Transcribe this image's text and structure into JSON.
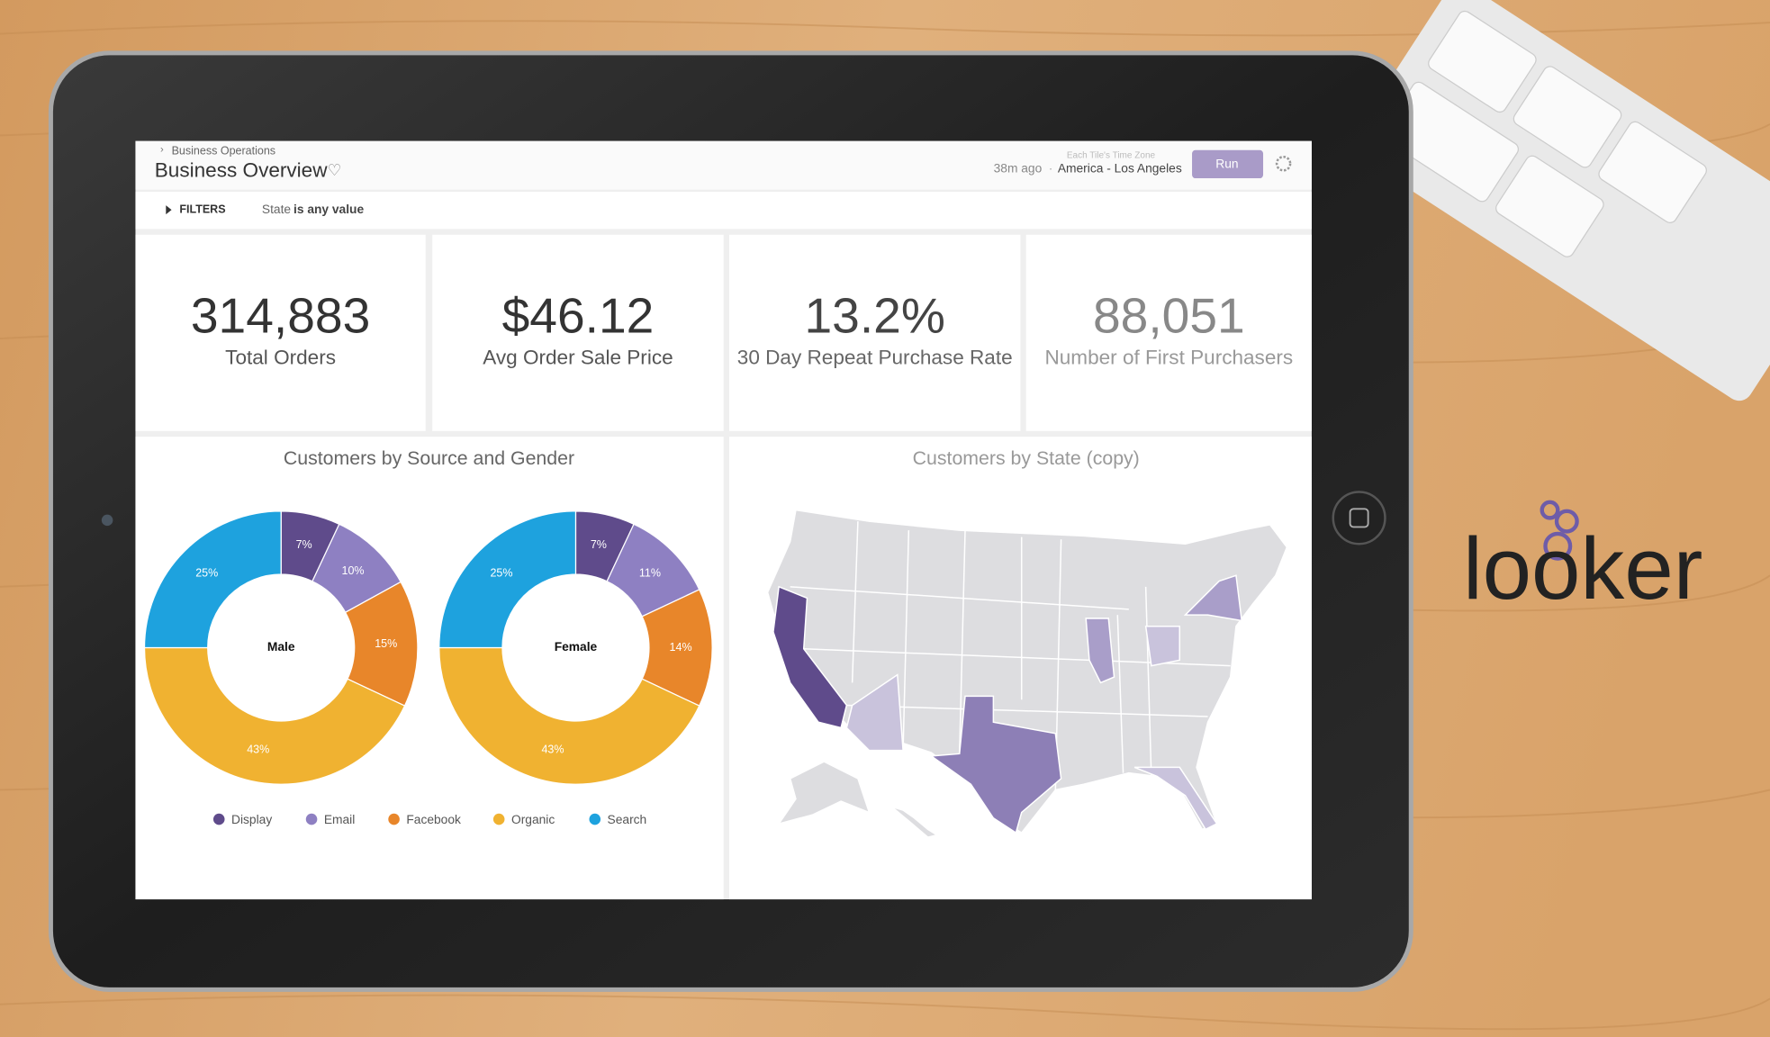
{
  "breadcrumb": "Business Operations",
  "title": "Business Overview",
  "updated": "38m ago",
  "timezone_hint": "Each Tile's Time Zone",
  "timezone": "America - Los Angeles",
  "run_button": "Run",
  "filters": {
    "label": "FILTERS",
    "field": "State",
    "condition": "is any value"
  },
  "kpis": [
    {
      "value": "314,883",
      "label": "Total Orders"
    },
    {
      "value": "$46.12",
      "label": "Avg Order Sale Price"
    },
    {
      "value": "13.2%",
      "label": "30 Day Repeat Purchase Rate"
    },
    {
      "value": "88,051",
      "label": "Number of First Purchasers"
    }
  ],
  "source_panel": {
    "title": "Customers by Source and Gender"
  },
  "chart_data": [
    {
      "type": "pie",
      "center_label": "Male",
      "categories": [
        "Display",
        "Email",
        "Facebook",
        "Organic",
        "Search"
      ],
      "colors": [
        "#5f4b8b",
        "#8e80c2",
        "#e8862a",
        "#f0b231",
        "#1ea2de"
      ],
      "values": [
        7,
        10,
        15,
        43,
        25
      ],
      "value_labels": [
        "7%",
        "10%",
        "15%",
        "43%",
        "25%"
      ]
    },
    {
      "type": "pie",
      "center_label": "Female",
      "categories": [
        "Display",
        "Email",
        "Facebook",
        "Organic",
        "Search"
      ],
      "colors": [
        "#5f4b8b",
        "#8e80c2",
        "#e8862a",
        "#f0b231",
        "#1ea2de"
      ],
      "values": [
        7,
        11,
        14,
        43,
        25
      ],
      "value_labels": [
        "7%",
        "11%",
        "14%",
        "43%",
        "25%"
      ]
    }
  ],
  "map": {
    "title": "Customers by State (copy)"
  },
  "logo": "looker"
}
